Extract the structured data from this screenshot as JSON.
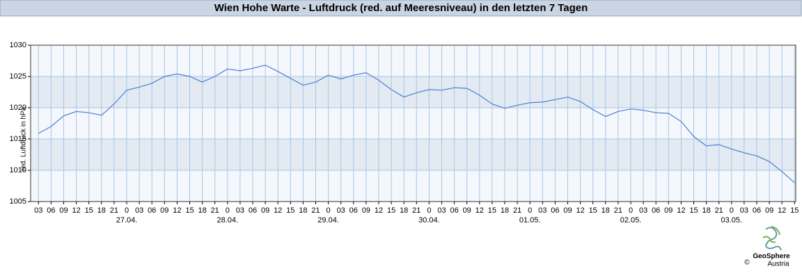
{
  "chart_data": {
    "type": "line",
    "title": "Wien Hohe Warte - Luftdruck (red. auf Meeresniveau) in den letzten 7 Tagen",
    "y_label": "red. Luftdruck in hPa",
    "categories": [
      "03",
      "06",
      "09",
      "12",
      "15",
      "18",
      "21",
      "0",
      "03",
      "06",
      "09",
      "12",
      "15",
      "18",
      "21",
      "0",
      "03",
      "06",
      "09",
      "12",
      "15",
      "18",
      "21",
      "0",
      "03",
      "06",
      "09",
      "12",
      "15",
      "18",
      "21",
      "0",
      "03",
      "06",
      "09",
      "12",
      "15",
      "18",
      "21",
      "0",
      "03",
      "06",
      "09",
      "12",
      "15",
      "18",
      "21",
      "0",
      "03",
      "06",
      "09",
      "12",
      "15",
      "18",
      "21",
      "0",
      "03",
      "06",
      "09",
      "12",
      "15"
    ],
    "dates": [
      null,
      null,
      null,
      null,
      null,
      null,
      null,
      "27.04.",
      null,
      null,
      null,
      null,
      null,
      null,
      null,
      "28.04.",
      null,
      null,
      null,
      null,
      null,
      null,
      null,
      "29.04.",
      null,
      null,
      null,
      null,
      null,
      null,
      null,
      "30.04.",
      null,
      null,
      null,
      null,
      null,
      null,
      null,
      "01.05.",
      null,
      null,
      null,
      null,
      null,
      null,
      null,
      "02.05.",
      null,
      null,
      null,
      null,
      null,
      null,
      null,
      "03.05.",
      null,
      null,
      null,
      null,
      null
    ],
    "series": [
      {
        "color": "#4a7fd4",
        "values": [
          1015.9,
          1017.0,
          1018.7,
          1019.4,
          1019.2,
          1018.8,
          1020.6,
          1022.8,
          1023.3,
          1023.9,
          1025.0,
          1025.4,
          1025.0,
          1024.1,
          1025.0,
          1026.2,
          1025.9,
          1026.3,
          1026.8,
          1025.8,
          1024.7,
          1023.6,
          1024.1,
          1025.2,
          1024.6,
          1025.2,
          1025.6,
          1024.4,
          1022.9,
          1021.7,
          1022.4,
          1022.9,
          1022.8,
          1023.2,
          1023.1,
          1022.0,
          1020.6,
          1019.9,
          1020.4,
          1020.8,
          1020.9,
          1021.3,
          1021.7,
          1021.0,
          1019.7,
          1018.6,
          1019.4,
          1019.8,
          1019.6,
          1019.2,
          1019.1,
          1017.8,
          1015.4,
          1013.9,
          1014.1,
          1013.4,
          1012.8,
          1012.3,
          1011.4,
          1009.8,
          1008.0
        ]
      }
    ],
    "ylim": [
      1005,
      1030
    ],
    "yticks": [
      1005,
      1010,
      1015,
      1020,
      1025,
      1030
    ],
    "grid": true,
    "band_colors": [
      "#f4f7fb",
      "#e3eaf2"
    ],
    "grid_color": "#a9c6e6",
    "logo": {
      "name": "GeoSphere",
      "sub": "Austria",
      "copyright": "©"
    }
  }
}
